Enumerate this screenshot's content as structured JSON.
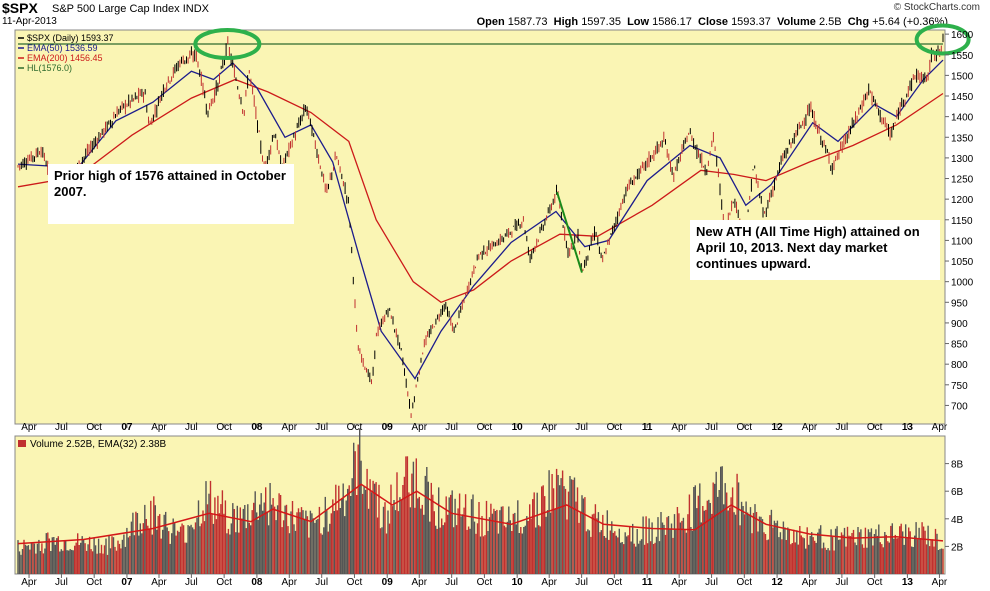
{
  "header": {
    "symbol": "$SPX",
    "name": "S&P 500 Large Cap Index",
    "exchange": "INDX",
    "date": "11-Apr-2013",
    "credit": "© StockCharts.com",
    "open_label": "Open",
    "open": "1587.73",
    "high_label": "High",
    "high": "1597.35",
    "low_label": "Low",
    "low": "1586.17",
    "close_label": "Close",
    "close": "1593.37",
    "volume_label": "Volume",
    "volume": "2.5B",
    "chg_label": "Chg",
    "chg": "+5.64 (+0.36%)"
  },
  "colors": {
    "panel_bg": "#faf5b4",
    "price": "#000000",
    "ema50": "#1c1c8c",
    "ema200": "#cc1a1a",
    "hline": "#2d6a2d",
    "circle": "#2db04b",
    "volume_up": "#555555",
    "volume_down": "#c0302f",
    "volume_ema": "#d41818",
    "trend": "#1a8a1a"
  },
  "legend": [
    {
      "text": "$SPX (Daily) 1593.37",
      "color": "#000000"
    },
    {
      "text": "EMA(50) 1536.59",
      "color": "#1c1c8c"
    },
    {
      "text": "EMA(200) 1456.45",
      "color": "#cc1a1a"
    },
    {
      "text": "HL(1576.0)",
      "color": "#2d6a2d"
    }
  ],
  "volume_legend": "Volume 2.52B, EMA(32) 2.38B",
  "annotations": {
    "left": "Prior high of 1576 attained in October 2007.",
    "right": "New ATH (All Time High) attained on April 10, 2013.  Next day market continues upward."
  },
  "chart_data": [
    {
      "type": "line",
      "title": "$SPX (Daily) 1593.37",
      "xlabel": "",
      "ylabel": "",
      "x_tick_labels": [
        "Apr",
        "Jul",
        "Oct",
        "07",
        "Apr",
        "Jul",
        "Oct",
        "08",
        "Apr",
        "Jul",
        "Oct",
        "09",
        "Apr",
        "Jul",
        "Oct",
        "10",
        "Apr",
        "Jul",
        "Oct",
        "11",
        "Apr",
        "Jul",
        "Oct",
        "12",
        "Apr",
        "Jul",
        "Oct",
        "13",
        "Apr"
      ],
      "y_tick_labels": [
        "700",
        "750",
        "800",
        "850",
        "900",
        "950",
        "1000",
        "1050",
        "1100",
        "1150",
        "1200",
        "1250",
        "1300",
        "1350",
        "1400",
        "1450",
        "1500",
        "1550",
        "1600"
      ],
      "ylim": [
        655,
        1610
      ],
      "x_range": [
        "2006-03-01",
        "2013-04-11"
      ],
      "grid": false,
      "series": [
        {
          "name": "$SPX (Daily) 1593.37",
          "points": [
            [
              "2006-03-01",
              1280
            ],
            [
              "2006-04-15",
              1305
            ],
            [
              "2006-05-06",
              1320
            ],
            [
              "2006-06-13",
              1225
            ],
            [
              "2006-07-15",
              1240
            ],
            [
              "2006-08-15",
              1280
            ],
            [
              "2006-10-01",
              1335
            ],
            [
              "2006-12-15",
              1420
            ],
            [
              "2007-02-20",
              1460
            ],
            [
              "2007-03-05",
              1375
            ],
            [
              "2007-04-15",
              1470
            ],
            [
              "2007-06-01",
              1535
            ],
            [
              "2007-07-15",
              1550
            ],
            [
              "2007-08-16",
              1410
            ],
            [
              "2007-09-15",
              1480
            ],
            [
              "2007-10-10",
              1576
            ],
            [
              "2007-11-26",
              1410
            ],
            [
              "2007-12-10",
              1515
            ],
            [
              "2008-01-22",
              1270
            ],
            [
              "2008-02-20",
              1365
            ],
            [
              "2008-03-10",
              1275
            ],
            [
              "2008-05-19",
              1425
            ],
            [
              "2008-07-15",
              1215
            ],
            [
              "2008-08-11",
              1305
            ],
            [
              "2008-09-15",
              1190
            ],
            [
              "2008-10-10",
              840
            ],
            [
              "2008-11-20",
              752
            ],
            [
              "2008-12-01",
              870
            ],
            [
              "2009-01-06",
              935
            ],
            [
              "2009-02-10",
              830
            ],
            [
              "2009-03-09",
              677
            ],
            [
              "2009-04-15",
              850
            ],
            [
              "2009-06-12",
              945
            ],
            [
              "2009-07-08",
              880
            ],
            [
              "2009-09-15",
              1065
            ],
            [
              "2009-11-15",
              1100
            ],
            [
              "2010-01-19",
              1150
            ],
            [
              "2010-02-05",
              1056
            ],
            [
              "2010-04-23",
              1217
            ],
            [
              "2010-05-25",
              1070
            ],
            [
              "2010-06-20",
              1115
            ],
            [
              "2010-07-02",
              1022
            ],
            [
              "2010-08-09",
              1125
            ],
            [
              "2010-08-27",
              1047
            ],
            [
              "2010-11-05",
              1225
            ],
            [
              "2011-02-18",
              1343
            ],
            [
              "2011-03-16",
              1256
            ],
            [
              "2011-04-29",
              1363
            ],
            [
              "2011-06-16",
              1267
            ],
            [
              "2011-07-07",
              1353
            ],
            [
              "2011-08-08",
              1119
            ],
            [
              "2011-09-01",
              1205
            ],
            [
              "2011-10-03",
              1099
            ],
            [
              "2011-10-27",
              1284
            ],
            [
              "2011-11-25",
              1158
            ],
            [
              "2012-01-15",
              1295
            ],
            [
              "2012-04-02",
              1419
            ],
            [
              "2012-06-04",
              1278
            ],
            [
              "2012-08-15",
              1405
            ],
            [
              "2012-09-14",
              1465
            ],
            [
              "2012-11-15",
              1353
            ],
            [
              "2012-12-20",
              1440
            ],
            [
              "2013-01-25",
              1502
            ],
            [
              "2013-02-25",
              1488
            ],
            [
              "2013-03-14",
              1563
            ],
            [
              "2013-04-05",
              1550
            ],
            [
              "2013-04-11",
              1593
            ]
          ]
        },
        {
          "name": "EMA(50) 1536.59",
          "points": [
            [
              "2006-03-01",
              1285
            ],
            [
              "2006-06-01",
              1280
            ],
            [
              "2006-08-01",
              1260
            ],
            [
              "2006-12-01",
              1390
            ],
            [
              "2007-03-15",
              1435
            ],
            [
              "2007-07-01",
              1510
            ],
            [
              "2007-09-01",
              1490
            ],
            [
              "2007-10-25",
              1530
            ],
            [
              "2008-01-01",
              1470
            ],
            [
              "2008-03-20",
              1350
            ],
            [
              "2008-06-01",
              1380
            ],
            [
              "2008-08-01",
              1290
            ],
            [
              "2008-10-15",
              1060
            ],
            [
              "2008-12-15",
              880
            ],
            [
              "2009-03-20",
              765
            ],
            [
              "2009-06-01",
              880
            ],
            [
              "2009-09-01",
              990
            ],
            [
              "2009-12-15",
              1095
            ],
            [
              "2010-04-20",
              1170
            ],
            [
              "2010-07-10",
              1085
            ],
            [
              "2010-09-15",
              1100
            ],
            [
              "2011-01-01",
              1245
            ],
            [
              "2011-05-01",
              1330
            ],
            [
              "2011-07-25",
              1300
            ],
            [
              "2011-10-05",
              1185
            ],
            [
              "2011-12-15",
              1235
            ],
            [
              "2012-04-10",
              1385
            ],
            [
              "2012-06-20",
              1340
            ],
            [
              "2012-10-01",
              1430
            ],
            [
              "2012-12-01",
              1400
            ],
            [
              "2013-02-15",
              1490
            ],
            [
              "2013-04-11",
              1537
            ]
          ]
        },
        {
          "name": "EMA(200) 1456.45",
          "points": [
            [
              "2006-03-01",
              1230
            ],
            [
              "2006-08-15",
              1255
            ],
            [
              "2007-01-15",
              1355
            ],
            [
              "2007-07-01",
              1445
            ],
            [
              "2007-11-01",
              1490
            ],
            [
              "2008-02-01",
              1460
            ],
            [
              "2008-06-01",
              1410
            ],
            [
              "2008-09-15",
              1340
            ],
            [
              "2008-12-01",
              1150
            ],
            [
              "2009-03-15",
              1000
            ],
            [
              "2009-06-01",
              950
            ],
            [
              "2009-09-01",
              980
            ],
            [
              "2009-12-15",
              1050
            ],
            [
              "2010-05-01",
              1115
            ],
            [
              "2010-08-15",
              1110
            ],
            [
              "2011-01-15",
              1185
            ],
            [
              "2011-06-01",
              1270
            ],
            [
              "2011-09-01",
              1260
            ],
            [
              "2011-12-01",
              1245
            ],
            [
              "2012-04-01",
              1290
            ],
            [
              "2012-08-01",
              1330
            ],
            [
              "2012-12-01",
              1380
            ],
            [
              "2013-04-11",
              1456
            ]
          ]
        },
        {
          "name": "HL(1576.0)",
          "points": [
            [
              "2006-03-01",
              1576
            ],
            [
              "2013-04-11",
              1576
            ]
          ]
        }
      ],
      "trendline": [
        [
          "2010-04-23",
          1217
        ],
        [
          "2010-07-02",
          1022
        ]
      ],
      "highlighted_highs": [
        {
          "x": "2007-10-10",
          "y": 1576
        },
        {
          "x": "2013-04-10",
          "y": 1587
        }
      ]
    },
    {
      "type": "bar",
      "title": "Volume 2.52B, EMA(32) 2.38B",
      "ylabel": "",
      "y_tick_labels": [
        "2B",
        "4B",
        "6B",
        "8B"
      ],
      "ylim": [
        0,
        10
      ],
      "x_range": [
        "2006-03-01",
        "2013-04-11"
      ],
      "series": [
        {
          "name": "Volume 2.52B",
          "points": [
            [
              "2006-03-01",
              2.2
            ],
            [
              "2006-06-01",
              2.8
            ],
            [
              "2006-12-01",
              2.4
            ],
            [
              "2007-02-27",
              5.5
            ],
            [
              "2007-06-01",
              3.2
            ],
            [
              "2007-08-10",
              6.2
            ],
            [
              "2007-11-15",
              4.5
            ],
            [
              "2008-01-22",
              6.5
            ],
            [
              "2008-03-15",
              5.2
            ],
            [
              "2008-06-01",
              4.0
            ],
            [
              "2008-09-20",
              7.5
            ],
            [
              "2008-10-10",
              9.5
            ],
            [
              "2008-11-20",
              8.0
            ],
            [
              "2008-12-20",
              4.8
            ],
            [
              "2009-03-10",
              8.5
            ],
            [
              "2009-06-01",
              5.5
            ],
            [
              "2009-09-01",
              5.0
            ],
            [
              "2009-12-01",
              4.2
            ],
            [
              "2010-05-06",
              7.5
            ],
            [
              "2010-08-01",
              4.5
            ],
            [
              "2010-12-01",
              3.5
            ],
            [
              "2011-03-15",
              4.2
            ],
            [
              "2011-08-08",
              7.5
            ],
            [
              "2011-11-01",
              4.8
            ],
            [
              "2012-03-01",
              3.2
            ],
            [
              "2012-07-01",
              3.0
            ],
            [
              "2012-11-01",
              3.2
            ],
            [
              "2013-02-15",
              3.4
            ],
            [
              "2013-04-11",
              2.5
            ]
          ]
        },
        {
          "name": "EMA(32) 2.38B",
          "points": [
            [
              "2006-03-01",
              2.2
            ],
            [
              "2006-09-01",
              2.5
            ],
            [
              "2007-03-15",
              3.3
            ],
            [
              "2007-08-20",
              4.4
            ],
            [
              "2007-12-15",
              3.8
            ],
            [
              "2008-02-15",
              4.7
            ],
            [
              "2008-06-01",
              3.8
            ],
            [
              "2008-10-20",
              6.5
            ],
            [
              "2009-01-15",
              5.0
            ],
            [
              "2009-03-25",
              6.0
            ],
            [
              "2009-07-01",
              4.4
            ],
            [
              "2009-12-15",
              3.6
            ],
            [
              "2010-05-20",
              5.0
            ],
            [
              "2010-09-01",
              3.6
            ],
            [
              "2011-01-15",
              3.3
            ],
            [
              "2011-05-15",
              3.2
            ],
            [
              "2011-08-25",
              5.0
            ],
            [
              "2011-12-01",
              3.6
            ],
            [
              "2012-04-01",
              2.9
            ],
            [
              "2012-08-01",
              2.6
            ],
            [
              "2012-12-01",
              2.7
            ],
            [
              "2013-04-11",
              2.4
            ]
          ]
        }
      ]
    }
  ]
}
